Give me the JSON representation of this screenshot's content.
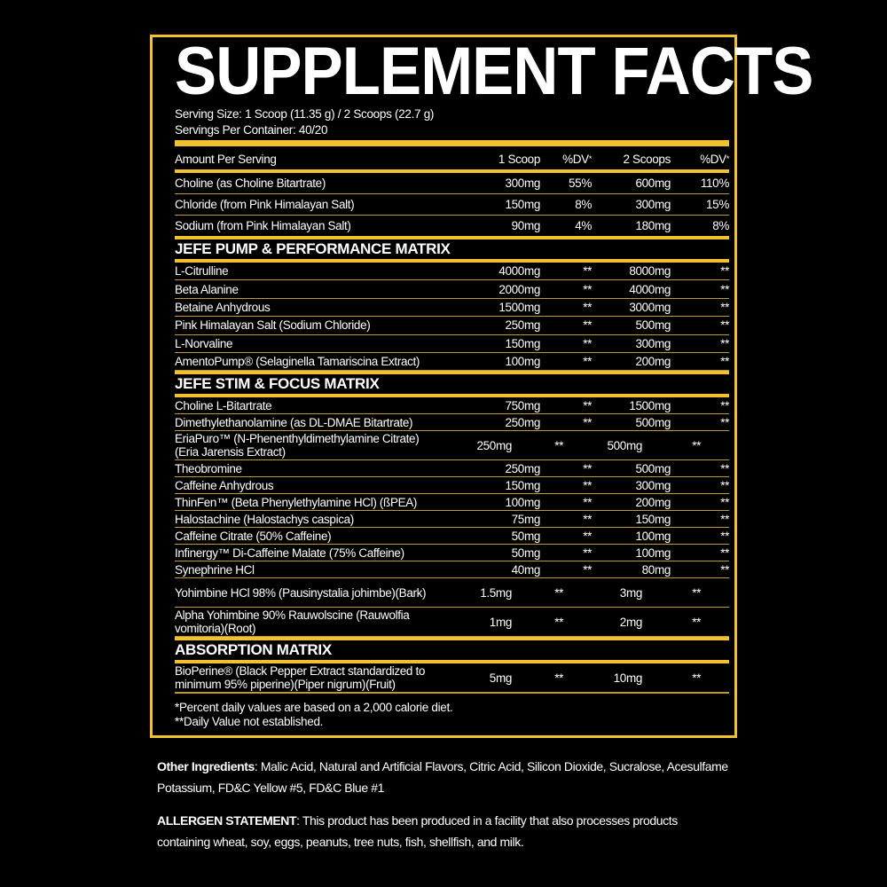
{
  "title": "SUPPLEMENT FACTS",
  "serving_size": "Serving Size: 1 Scoop (11.35 g) / 2 Scoops (22.7 g)",
  "servings_per_container": "Servings Per Container: 40/20",
  "header": {
    "amount": "Amount Per Serving",
    "col1": "1 Scoop",
    "col2": "%DV",
    "col3": "2 Scoops",
    "col4": "%DV",
    "asterisk": "*"
  },
  "basic": [
    {
      "name": "Choline (as Choline Bitartrate)",
      "s1": "300mg",
      "dv1": "55%",
      "s2": "600mg",
      "dv2": "110%"
    },
    {
      "name": "Chloride (from Pink Himalayan Salt)",
      "s1": "150mg",
      "dv1": "8%",
      "s2": "300mg",
      "dv2": "15%"
    },
    {
      "name": "Sodium (from Pink Himalayan Salt)",
      "s1": "90mg",
      "dv1": "4%",
      "s2": "180mg",
      "dv2": "8%"
    }
  ],
  "sections": [
    {
      "title": "JEFE PUMP & PERFORMANCE MATRIX",
      "rows": [
        {
          "name": "L-Citrulline",
          "s1": "4000mg",
          "dv1": "**",
          "s2": "8000mg",
          "dv2": "**"
        },
        {
          "name": "Beta Alanine",
          "s1": "2000mg",
          "dv1": "**",
          "s2": "4000mg",
          "dv2": "**"
        },
        {
          "name": "Betaine Anhydrous",
          "s1": "1500mg",
          "dv1": "**",
          "s2": "3000mg",
          "dv2": "**"
        },
        {
          "name": "Pink Himalayan Salt (Sodium Chloride)",
          "s1": "250mg",
          "dv1": "**",
          "s2": "500mg",
          "dv2": "**"
        },
        {
          "name": "L-Norvaline",
          "s1": "150mg",
          "dv1": "**",
          "s2": "300mg",
          "dv2": "**"
        },
        {
          "name": "AmentoPump® (Selaginella Tamariscina Extract)",
          "s1": "100mg",
          "dv1": "**",
          "s2": "200mg",
          "dv2": "**"
        }
      ]
    },
    {
      "title": "JEFE STIM & FOCUS MATRIX",
      "rows": [
        {
          "name": "Choline L-Bitartrate",
          "s1": "750mg",
          "dv1": "**",
          "s2": "1500mg",
          "dv2": "**"
        },
        {
          "name": "Dimethylethanolamine (as DL-DMAE Bitartrate)",
          "s1": "250mg",
          "dv1": "**",
          "s2": "500mg",
          "dv2": "**"
        },
        {
          "name": "EriaPuro™ (N-Phenenthyldimethylamine Citrate) (Eria Jarensis Extract)",
          "s1": "250mg",
          "dv1": "**",
          "s2": "500mg",
          "dv2": "**"
        },
        {
          "name": "Theobromine",
          "s1": "250mg",
          "dv1": "**",
          "s2": "500mg",
          "dv2": "**"
        },
        {
          "name": "Caffeine Anhydrous",
          "s1": "150mg",
          "dv1": "**",
          "s2": "300mg",
          "dv2": "**"
        },
        {
          "name": "ThinFen™ (Beta Phenylethylamine HCl) (ßPEA)",
          "s1": "100mg",
          "dv1": "**",
          "s2": "200mg",
          "dv2": "**"
        },
        {
          "name": "Halostachine (Halostachys caspica)",
          "s1": "75mg",
          "dv1": "**",
          "s2": "150mg",
          "dv2": "**"
        },
        {
          "name": "Caffeine Citrate (50% Caffeine)",
          "s1": "50mg",
          "dv1": "**",
          "s2": "100mg",
          "dv2": "**"
        },
        {
          "name": "Infinergy™ Di-Caffeine Malate (75% Caffeine)",
          "s1": "50mg",
          "dv1": "**",
          "s2": "100mg",
          "dv2": "**"
        },
        {
          "name": "Synephrine HCl",
          "s1": "40mg",
          "dv1": "**",
          "s2": "80mg",
          "dv2": "**"
        },
        {
          "name": "Yohimbine HCl 98% (Pausinystalia johimbe)(Bark)",
          "s1": "1.5mg",
          "dv1": "**",
          "s2": "3mg",
          "dv2": "**"
        },
        {
          "name": "Alpha Yohimbine 90% Rauwolscine (Rauwolfia vomitoria)(Root)",
          "s1": "1mg",
          "dv1": "**",
          "s2": "2mg",
          "dv2": "**"
        }
      ]
    },
    {
      "title": "ABSORPTION MATRIX",
      "rows": [
        {
          "name": "BioPerine® (Black Pepper Extract standardized to minimum 95% piperine)(Piper nigrum)(Fruit)",
          "s1": "5mg",
          "dv1": "**",
          "s2": "10mg",
          "dv2": "**"
        }
      ]
    }
  ],
  "footnotes": [
    "*Percent daily values are based on a 2,000 calorie diet.",
    "**Daily Value not established."
  ],
  "other_ingredients": {
    "label": "Other Ingredients",
    "text": ": Malic Acid, Natural and Artificial Flavors, Citric Acid, Silicon Dioxide, Sucralose, Acesulfame Potassium, FD&C Yellow #5, FD&C Blue #1"
  },
  "allergen": {
    "label": "ALLERGEN STATEMENT",
    "text": ": This product has been produced in a facility that also processes products containing wheat, soy, eggs, peanuts, tree nuts, fish, shellfish, and milk."
  },
  "colors": {
    "accent": "#f2c12e",
    "background": "#000000",
    "text": "#ffffff"
  }
}
